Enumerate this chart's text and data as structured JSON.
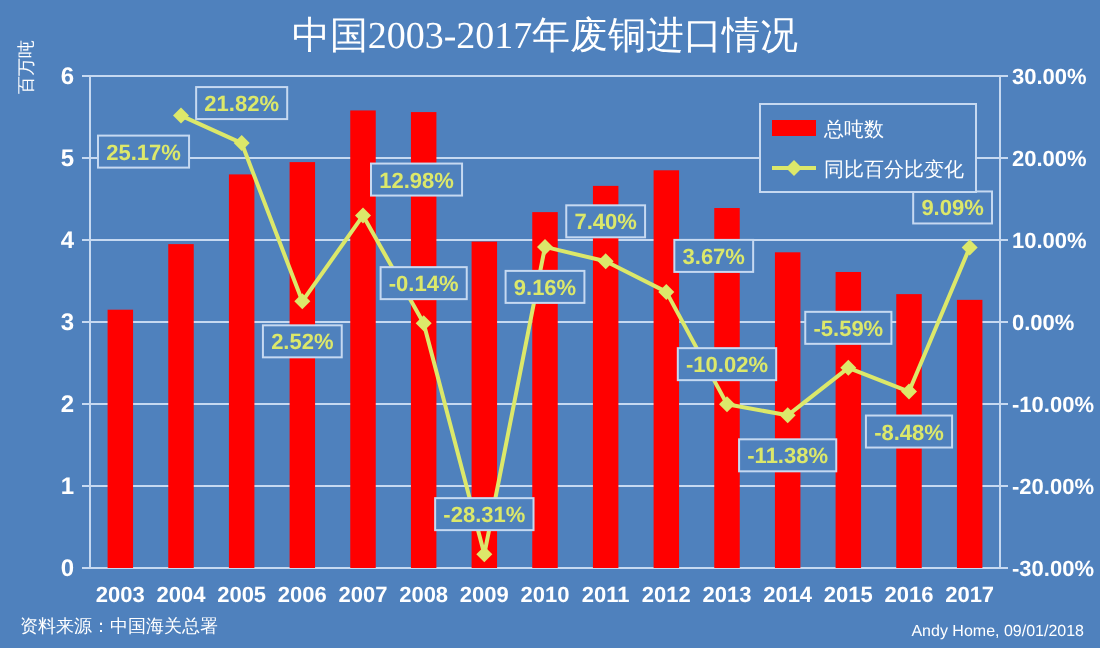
{
  "chart_data": {
    "type": "bar",
    "title": "中国2003-2017年废铜进口情况",
    "ylabel": "百万吨",
    "categories": [
      "2003",
      "2004",
      "2005",
      "2006",
      "2007",
      "2008",
      "2009",
      "2010",
      "2011",
      "2012",
      "2013",
      "2014",
      "2015",
      "2016",
      "2017"
    ],
    "series": [
      {
        "name": "总吨数",
        "type": "bar",
        "color": "#ff0000",
        "values": [
          3.15,
          3.95,
          4.8,
          4.95,
          5.58,
          5.56,
          3.98,
          4.34,
          4.66,
          4.85,
          4.39,
          3.85,
          3.61,
          3.34,
          3.27
        ]
      },
      {
        "name": "同比百分比变化",
        "type": "line",
        "axis": "y2",
        "color": "#dce86a",
        "marker": "diamond",
        "values": [
          null,
          25.17,
          21.82,
          2.52,
          12.98,
          -0.14,
          -28.31,
          9.16,
          7.4,
          3.67,
          -10.02,
          -11.38,
          -5.59,
          -8.48,
          9.09
        ],
        "value_labels": [
          null,
          "25.17%",
          "21.82%",
          "2.52%",
          "12.98%",
          "-0.14%",
          "-28.31%",
          "9.16%",
          "7.40%",
          "3.67%",
          "-10.02%",
          "-11.38%",
          "-5.59%",
          "-8.48%",
          "9.09%"
        ]
      }
    ],
    "ylim": [
      0,
      6
    ],
    "yticks": [
      0,
      1,
      2,
      3,
      4,
      5,
      6
    ],
    "y2lim": [
      -30,
      30
    ],
    "y2ticks": [
      {
        "value": -30,
        "label": "-30.00%"
      },
      {
        "value": -20,
        "label": "-20.00%"
      },
      {
        "value": -10,
        "label": "-10.00%"
      },
      {
        "value": 0,
        "label": "0.00%"
      },
      {
        "value": 10,
        "label": "10.00%"
      },
      {
        "value": 20,
        "label": "20.00%"
      },
      {
        "value": 30,
        "label": "30.00%"
      }
    ],
    "grid": "y",
    "legend": "top right",
    "annotations": [
      "资料来源：中国海关总署",
      "Andy Home, 09/01/2018"
    ]
  }
}
